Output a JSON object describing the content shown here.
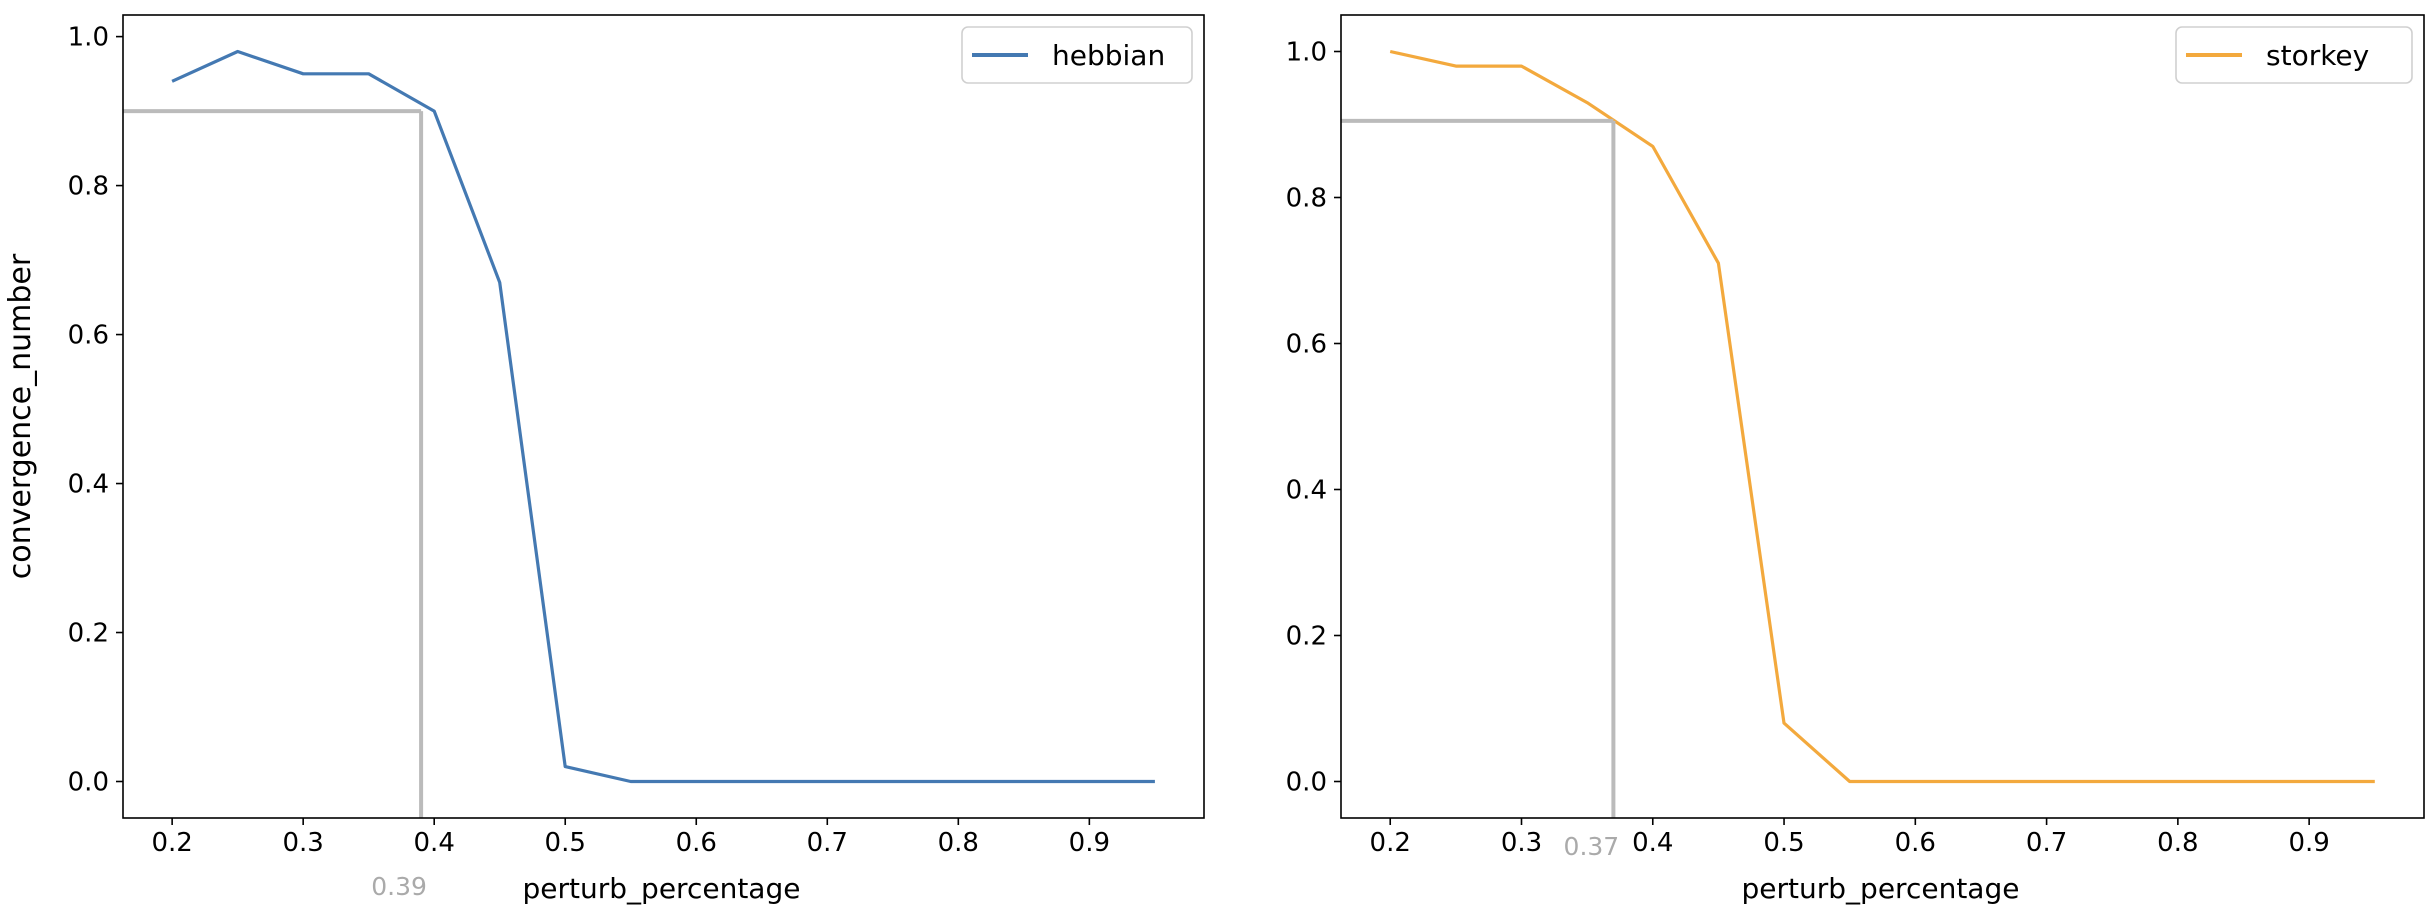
{
  "chart_data": [
    {
      "type": "line",
      "x": [
        0.2,
        0.25,
        0.3,
        0.35,
        0.4,
        0.45,
        0.5,
        0.55,
        0.6,
        0.65,
        0.7,
        0.75,
        0.8,
        0.85,
        0.9,
        0.95
      ],
      "series": [
        {
          "name": "hebbian",
          "color": "#4479b2",
          "values": [
            0.94,
            0.98,
            0.95,
            0.95,
            0.9,
            0.67,
            0.02,
            0.0,
            0.0,
            0.0,
            0.0,
            0.0,
            0.0,
            0.0,
            0.0,
            0.0
          ]
        }
      ],
      "xlabel": "perturb_percentage",
      "ylabel": "convergence_number",
      "xlim": [
        0.1625,
        0.9875
      ],
      "ylim": [
        -0.049,
        1.029
      ],
      "xticks": [
        0.2,
        0.3,
        0.4,
        0.5,
        0.6,
        0.7,
        0.8,
        0.9
      ],
      "xtick_labels": [
        "0.2",
        "0.3",
        "0.4",
        "0.5",
        "0.6",
        "0.7",
        "0.8",
        "0.9"
      ],
      "yticks": [
        0.0,
        0.2,
        0.4,
        0.6,
        0.8,
        1.0
      ],
      "ytick_labels": [
        "0.0",
        "0.2",
        "0.4",
        "0.6",
        "0.8",
        "1.0"
      ],
      "marker": {
        "x": 0.39,
        "y": 0.9,
        "label": "0.39",
        "color": "#bbbbbb"
      },
      "legend": "top-right",
      "grid": false
    },
    {
      "type": "line",
      "x": [
        0.2,
        0.25,
        0.3,
        0.35,
        0.4,
        0.45,
        0.5,
        0.55,
        0.6,
        0.65,
        0.7,
        0.75,
        0.8,
        0.85,
        0.9,
        0.95
      ],
      "series": [
        {
          "name": "storkey",
          "color": "#f3a93d",
          "values": [
            1.0,
            0.98,
            0.98,
            0.93,
            0.87,
            0.71,
            0.08,
            0.0,
            0.0,
            0.0,
            0.0,
            0.0,
            0.0,
            0.0,
            0.0,
            0.0
          ]
        }
      ],
      "xlabel": "perturb_percentage",
      "ylabel": "",
      "xlim": [
        0.1625,
        0.9875
      ],
      "ylim": [
        -0.05,
        1.05
      ],
      "xticks": [
        0.2,
        0.3,
        0.4,
        0.5,
        0.6,
        0.7,
        0.8,
        0.9
      ],
      "xtick_labels": [
        "0.2",
        "0.3",
        "0.4",
        "0.5",
        "0.6",
        "0.7",
        "0.8",
        "0.9"
      ],
      "yticks": [
        0.0,
        0.2,
        0.4,
        0.6,
        0.8,
        1.0
      ],
      "ytick_labels": [
        "0.0",
        "0.2",
        "0.4",
        "0.6",
        "0.8",
        "1.0"
      ],
      "marker": {
        "x": 0.37,
        "y": 0.905,
        "label": "0.37",
        "color": "#bbbbbb"
      },
      "legend": "top-right",
      "grid": false
    }
  ]
}
